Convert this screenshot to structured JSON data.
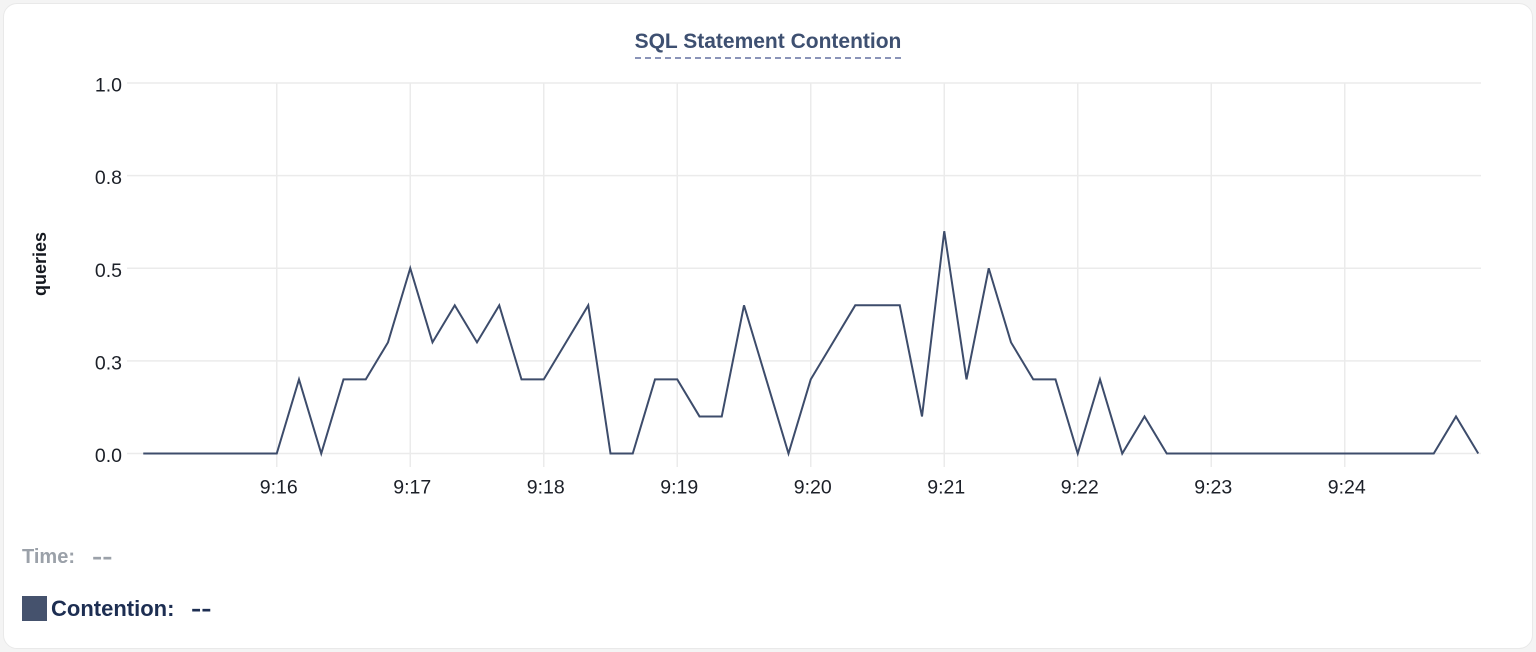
{
  "readout": {
    "time_label": "Time:",
    "time_value": "--",
    "contention_label": "Contention:",
    "contention_value": "--"
  },
  "chart_data": {
    "type": "line",
    "title": "SQL Statement Contention",
    "ylabel": "queries",
    "x_start": "9:15:00",
    "x_end": "9:25:00",
    "x_interval_seconds": 10,
    "x_tick_labels": [
      "9:16",
      "9:17",
      "9:18",
      "9:19",
      "9:20",
      "9:21",
      "9:22",
      "9:23",
      "9:24"
    ],
    "y_ticks": [
      {
        "label": "0.0",
        "value": 0
      },
      {
        "label": "0.3",
        "value": 0.25
      },
      {
        "label": "0.5",
        "value": 0.5
      },
      {
        "label": "0.8",
        "value": 0.75
      },
      {
        "label": "1.0",
        "value": 1.0
      }
    ],
    "ylim": [
      0,
      1.0
    ],
    "grid": true,
    "legend_position": "bottom-left",
    "colors": {
      "line": "#3d4c6b",
      "grid": "#ebebeb",
      "tick_text": "#1c2028",
      "axis_label_text": "#14181f"
    },
    "series": [
      {
        "name": "Contention",
        "values": [
          0,
          0,
          0,
          0,
          0,
          0,
          0,
          0.2,
          0,
          0.2,
          0.2,
          0.3,
          0.5,
          0.3,
          0.4,
          0.3,
          0.4,
          0.2,
          0.2,
          0.3,
          0.4,
          0,
          0,
          0.2,
          0.2,
          0.1,
          0.1,
          0.4,
          0.2,
          0,
          0.2,
          0.3,
          0.4,
          0.4,
          0.4,
          0.1,
          0.6,
          0.2,
          0.5,
          0.3,
          0.2,
          0.2,
          0,
          0.2,
          0,
          0.1,
          0,
          0,
          0,
          0,
          0,
          0,
          0,
          0,
          0,
          0,
          0,
          0,
          0,
          0.1,
          0
        ]
      }
    ]
  }
}
